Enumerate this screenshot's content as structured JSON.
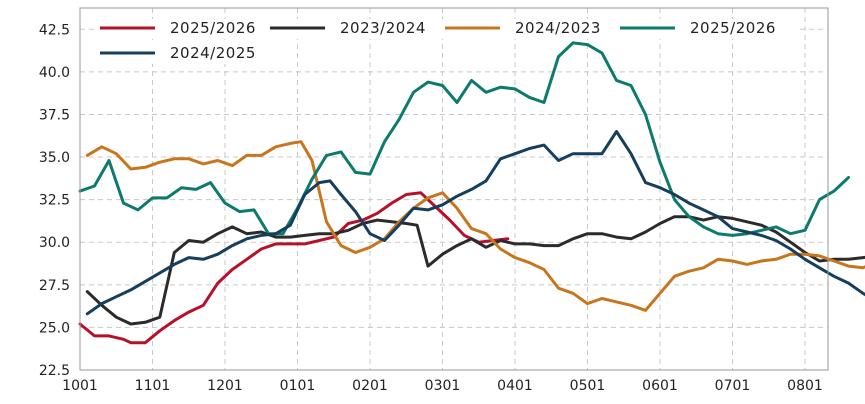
{
  "chart_data": {
    "type": "line",
    "title": "",
    "xlabel": "",
    "ylabel": "",
    "ylim": [
      22.5,
      43.75
    ],
    "yticks": [
      "22.5",
      "25.0",
      "27.5",
      "30.0",
      "32.5",
      "35.0",
      "37.5",
      "40.0",
      "42.5"
    ],
    "xticks": [
      "1001",
      "1101",
      "1201",
      "0101",
      "0201",
      "0301",
      "0401",
      "0501",
      "0601",
      "0701",
      "0801"
    ],
    "grid": true,
    "legend_position": "top",
    "series": [
      {
        "name": "2025/2026",
        "color": "#b5122a",
        "values": [
          [
            0.0,
            25.2
          ],
          [
            0.2,
            24.5
          ],
          [
            0.4,
            24.5
          ],
          [
            0.6,
            24.3
          ],
          [
            0.7,
            24.1
          ],
          [
            0.9,
            24.1
          ],
          [
            1.1,
            24.8
          ],
          [
            1.3,
            25.4
          ],
          [
            1.5,
            25.9
          ],
          [
            1.7,
            26.3
          ],
          [
            1.9,
            27.6
          ],
          [
            2.1,
            28.4
          ],
          [
            2.3,
            29.0
          ],
          [
            2.5,
            29.6
          ],
          [
            2.7,
            29.9
          ],
          [
            2.9,
            29.9
          ],
          [
            3.1,
            29.9
          ],
          [
            3.3,
            30.1
          ],
          [
            3.5,
            30.3
          ],
          [
            3.7,
            31.1
          ],
          [
            3.9,
            31.3
          ],
          [
            4.1,
            31.7
          ],
          [
            4.3,
            32.3
          ],
          [
            4.5,
            32.8
          ],
          [
            4.7,
            32.9
          ],
          [
            4.9,
            32.1
          ],
          [
            5.1,
            31.3
          ],
          [
            5.3,
            30.4
          ],
          [
            5.5,
            30.0
          ],
          [
            5.7,
            30.1
          ],
          [
            5.9,
            30.2
          ]
        ]
      },
      {
        "name": "2023/2024",
        "color": "#2b2b2b",
        "values": [
          [
            0.1,
            27.1
          ],
          [
            0.3,
            26.3
          ],
          [
            0.5,
            25.6
          ],
          [
            0.7,
            25.2
          ],
          [
            0.9,
            25.3
          ],
          [
            1.1,
            25.6
          ],
          [
            1.3,
            29.4
          ],
          [
            1.5,
            30.1
          ],
          [
            1.7,
            30.0
          ],
          [
            1.9,
            30.5
          ],
          [
            2.1,
            30.9
          ],
          [
            2.3,
            30.5
          ],
          [
            2.5,
            30.6
          ],
          [
            2.7,
            30.3
          ],
          [
            2.9,
            30.3
          ],
          [
            3.1,
            30.4
          ],
          [
            3.3,
            30.5
          ],
          [
            3.5,
            30.5
          ],
          [
            3.7,
            30.7
          ],
          [
            3.9,
            31.1
          ],
          [
            4.1,
            31.3
          ],
          [
            4.3,
            31.2
          ],
          [
            4.5,
            31.1
          ],
          [
            4.65,
            31.0
          ],
          [
            4.8,
            28.6
          ],
          [
            5.0,
            29.3
          ],
          [
            5.2,
            29.8
          ],
          [
            5.4,
            30.2
          ],
          [
            5.6,
            29.7
          ],
          [
            5.8,
            30.1
          ],
          [
            6.0,
            29.9
          ],
          [
            6.2,
            29.9
          ],
          [
            6.4,
            29.8
          ],
          [
            6.6,
            29.8
          ],
          [
            6.8,
            30.2
          ],
          [
            7.0,
            30.5
          ],
          [
            7.2,
            30.5
          ],
          [
            7.4,
            30.3
          ],
          [
            7.6,
            30.2
          ],
          [
            7.8,
            30.6
          ],
          [
            8.0,
            31.1
          ],
          [
            8.2,
            31.5
          ],
          [
            8.4,
            31.5
          ],
          [
            8.6,
            31.3
          ],
          [
            8.8,
            31.5
          ],
          [
            9.0,
            31.4
          ],
          [
            9.2,
            31.2
          ],
          [
            9.4,
            31.0
          ],
          [
            9.6,
            30.6
          ],
          [
            9.8,
            30.0
          ],
          [
            10.0,
            29.4
          ],
          [
            10.2,
            28.9
          ],
          [
            10.4,
            29.0
          ],
          [
            10.6,
            29.0
          ],
          [
            10.8,
            29.1
          ],
          [
            11.0,
            29.2
          ],
          [
            11.2,
            29.1
          ],
          [
            11.35,
            28.0
          ]
        ]
      },
      {
        "name": "2024/2023",
        "color": "#c8761e",
        "values": [
          [
            0.1,
            35.1
          ],
          [
            0.3,
            35.6
          ],
          [
            0.5,
            35.2
          ],
          [
            0.7,
            34.3
          ],
          [
            0.9,
            34.4
          ],
          [
            1.1,
            34.7
          ],
          [
            1.3,
            34.9
          ],
          [
            1.5,
            34.9
          ],
          [
            1.7,
            34.6
          ],
          [
            1.9,
            34.8
          ],
          [
            2.1,
            34.5
          ],
          [
            2.3,
            35.1
          ],
          [
            2.5,
            35.1
          ],
          [
            2.7,
            35.6
          ],
          [
            2.9,
            35.8
          ],
          [
            3.05,
            35.9
          ],
          [
            3.2,
            34.8
          ],
          [
            3.4,
            31.2
          ],
          [
            3.6,
            29.8
          ],
          [
            3.8,
            29.4
          ],
          [
            4.0,
            29.7
          ],
          [
            4.2,
            30.2
          ],
          [
            4.4,
            31.2
          ],
          [
            4.6,
            32.0
          ],
          [
            4.8,
            32.6
          ],
          [
            5.0,
            32.9
          ],
          [
            5.2,
            32.0
          ],
          [
            5.4,
            30.8
          ],
          [
            5.6,
            30.5
          ],
          [
            5.8,
            29.6
          ],
          [
            6.0,
            29.1
          ],
          [
            6.2,
            28.8
          ],
          [
            6.4,
            28.4
          ],
          [
            6.6,
            27.3
          ],
          [
            6.8,
            27.0
          ],
          [
            7.0,
            26.4
          ],
          [
            7.2,
            26.7
          ],
          [
            7.4,
            26.5
          ],
          [
            7.6,
            26.3
          ],
          [
            7.8,
            26.0
          ],
          [
            8.0,
            27.0
          ],
          [
            8.2,
            28.0
          ],
          [
            8.4,
            28.3
          ],
          [
            8.6,
            28.5
          ],
          [
            8.8,
            29.0
          ],
          [
            9.0,
            28.9
          ],
          [
            9.2,
            28.7
          ],
          [
            9.4,
            28.9
          ],
          [
            9.6,
            29.0
          ],
          [
            9.8,
            29.3
          ],
          [
            10.0,
            29.3
          ],
          [
            10.2,
            29.2
          ],
          [
            10.4,
            28.9
          ],
          [
            10.6,
            28.6
          ],
          [
            10.8,
            28.5
          ],
          [
            11.0,
            28.9
          ],
          [
            11.2,
            28.6
          ],
          [
            11.35,
            27.7
          ]
        ]
      },
      {
        "name": "2025/2026",
        "color": "#0d7a6e",
        "values": [
          [
            0.0,
            33.0
          ],
          [
            0.2,
            33.3
          ],
          [
            0.4,
            34.8
          ],
          [
            0.6,
            32.3
          ],
          [
            0.8,
            31.9
          ],
          [
            1.0,
            32.6
          ],
          [
            1.2,
            32.6
          ],
          [
            1.4,
            33.2
          ],
          [
            1.6,
            33.1
          ],
          [
            1.8,
            33.5
          ],
          [
            2.0,
            32.3
          ],
          [
            2.2,
            31.8
          ],
          [
            2.4,
            31.9
          ],
          [
            2.6,
            30.5
          ],
          [
            2.8,
            30.5
          ],
          [
            3.0,
            32.0
          ],
          [
            3.2,
            33.7
          ],
          [
            3.4,
            35.1
          ],
          [
            3.6,
            35.3
          ],
          [
            3.8,
            34.1
          ],
          [
            4.0,
            34.0
          ],
          [
            4.2,
            35.9
          ],
          [
            4.4,
            37.2
          ],
          [
            4.6,
            38.8
          ],
          [
            4.8,
            39.4
          ],
          [
            5.0,
            39.2
          ],
          [
            5.2,
            38.2
          ],
          [
            5.4,
            39.5
          ],
          [
            5.6,
            38.8
          ],
          [
            5.8,
            39.1
          ],
          [
            6.0,
            39.0
          ],
          [
            6.2,
            38.5
          ],
          [
            6.4,
            38.2
          ],
          [
            6.6,
            40.9
          ],
          [
            6.8,
            41.7
          ],
          [
            7.0,
            41.6
          ],
          [
            7.2,
            41.1
          ],
          [
            7.4,
            39.5
          ],
          [
            7.6,
            39.2
          ],
          [
            7.8,
            37.5
          ],
          [
            8.0,
            34.7
          ],
          [
            8.2,
            32.5
          ],
          [
            8.4,
            31.5
          ],
          [
            8.6,
            30.9
          ],
          [
            8.8,
            30.5
          ],
          [
            9.0,
            30.4
          ],
          [
            9.2,
            30.5
          ],
          [
            9.4,
            30.7
          ],
          [
            9.6,
            30.9
          ],
          [
            9.8,
            30.5
          ],
          [
            10.0,
            30.7
          ],
          [
            10.2,
            32.5
          ],
          [
            10.4,
            33.0
          ],
          [
            10.6,
            33.8
          ]
        ]
      },
      {
        "name": "2024/2025",
        "color": "#153f5c",
        "values": [
          [
            0.1,
            25.8
          ],
          [
            0.3,
            26.4
          ],
          [
            0.5,
            26.8
          ],
          [
            0.7,
            27.2
          ],
          [
            0.9,
            27.7
          ],
          [
            1.1,
            28.2
          ],
          [
            1.3,
            28.7
          ],
          [
            1.5,
            29.1
          ],
          [
            1.7,
            29.0
          ],
          [
            1.9,
            29.3
          ],
          [
            2.1,
            29.8
          ],
          [
            2.3,
            30.2
          ],
          [
            2.5,
            30.4
          ],
          [
            2.7,
            30.5
          ],
          [
            2.9,
            31.0
          ],
          [
            3.1,
            32.8
          ],
          [
            3.3,
            33.5
          ],
          [
            3.45,
            33.6
          ],
          [
            3.6,
            32.8
          ],
          [
            3.8,
            31.8
          ],
          [
            4.0,
            30.5
          ],
          [
            4.2,
            30.1
          ],
          [
            4.4,
            31.0
          ],
          [
            4.6,
            32.0
          ],
          [
            4.8,
            31.9
          ],
          [
            5.0,
            32.2
          ],
          [
            5.2,
            32.7
          ],
          [
            5.4,
            33.1
          ],
          [
            5.6,
            33.6
          ],
          [
            5.8,
            34.9
          ],
          [
            6.0,
            35.2
          ],
          [
            6.2,
            35.5
          ],
          [
            6.4,
            35.7
          ],
          [
            6.6,
            34.8
          ],
          [
            6.8,
            35.2
          ],
          [
            7.0,
            35.2
          ],
          [
            7.2,
            35.2
          ],
          [
            7.4,
            36.5
          ],
          [
            7.6,
            35.2
          ],
          [
            7.8,
            33.5
          ],
          [
            8.0,
            33.2
          ],
          [
            8.2,
            32.8
          ],
          [
            8.4,
            32.3
          ],
          [
            8.6,
            31.9
          ],
          [
            8.8,
            31.5
          ],
          [
            9.0,
            30.8
          ],
          [
            9.2,
            30.6
          ],
          [
            9.4,
            30.4
          ],
          [
            9.6,
            30.1
          ],
          [
            9.8,
            29.6
          ],
          [
            10.0,
            29.0
          ],
          [
            10.2,
            28.5
          ],
          [
            10.4,
            28.0
          ],
          [
            10.6,
            27.6
          ],
          [
            10.8,
            27.0
          ],
          [
            11.0,
            26.5
          ],
          [
            11.2,
            26.1
          ],
          [
            11.35,
            26.0
          ]
        ]
      }
    ]
  }
}
